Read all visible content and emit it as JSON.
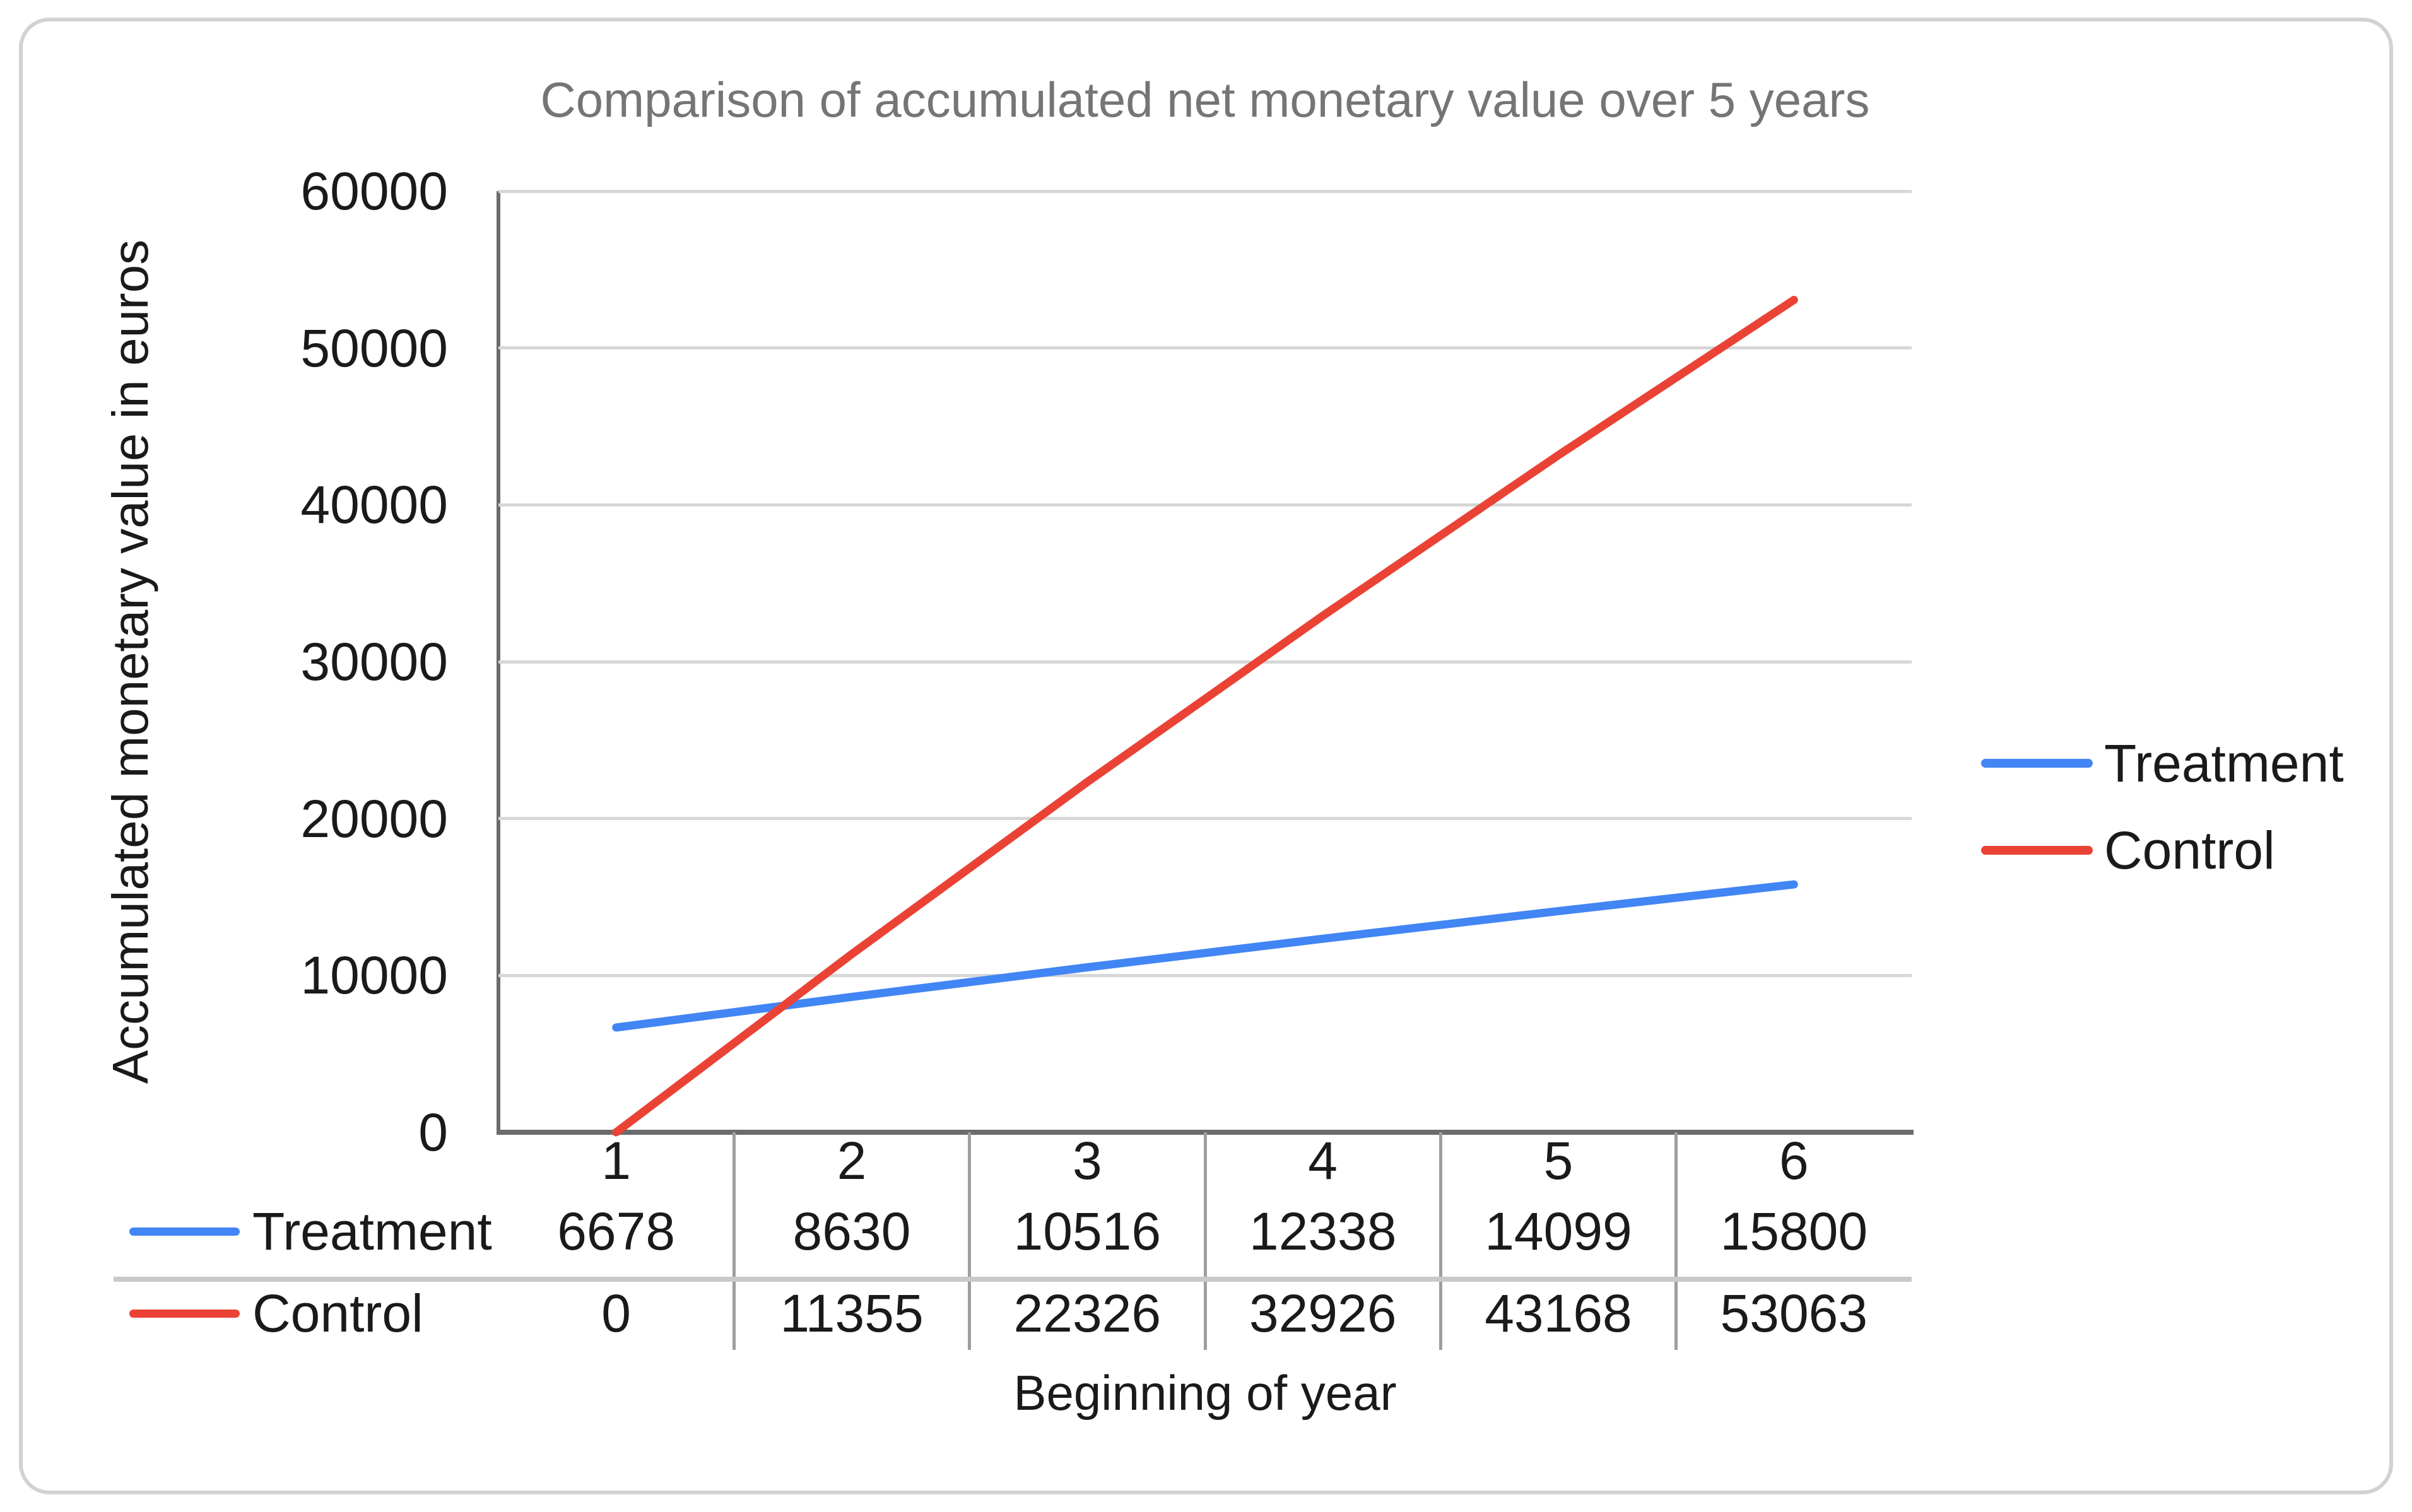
{
  "chart_data": {
    "type": "line",
    "title": "Comparison of accumulated net monetary value over 5 years",
    "xlabel": "Beginning of year",
    "ylabel": "Accumulated monetary value in euros",
    "categories": [
      "1",
      "2",
      "3",
      "4",
      "5",
      "6"
    ],
    "series": [
      {
        "name": "Treatment",
        "color": "#4285F4",
        "values": [
          6678,
          8630,
          10516,
          12338,
          14099,
          15800
        ]
      },
      {
        "name": "Control",
        "color": "#EA4335",
        "values": [
          0,
          11355,
          22326,
          32926,
          43168,
          53063
        ]
      }
    ],
    "ylim": [
      0,
      60000
    ],
    "y_ticks": [
      0,
      10000,
      20000,
      30000,
      40000,
      50000,
      60000
    ],
    "grid": true,
    "legend_position": "right"
  },
  "colors": {
    "grid": "#d7d7d7",
    "axis": "#6b6b6b",
    "title_text": "#757575",
    "text": "#1a1a1a",
    "row_separator": "#c9c9c9",
    "column_separator": "#9e9e9e",
    "card_border": "#d2d2d2"
  }
}
